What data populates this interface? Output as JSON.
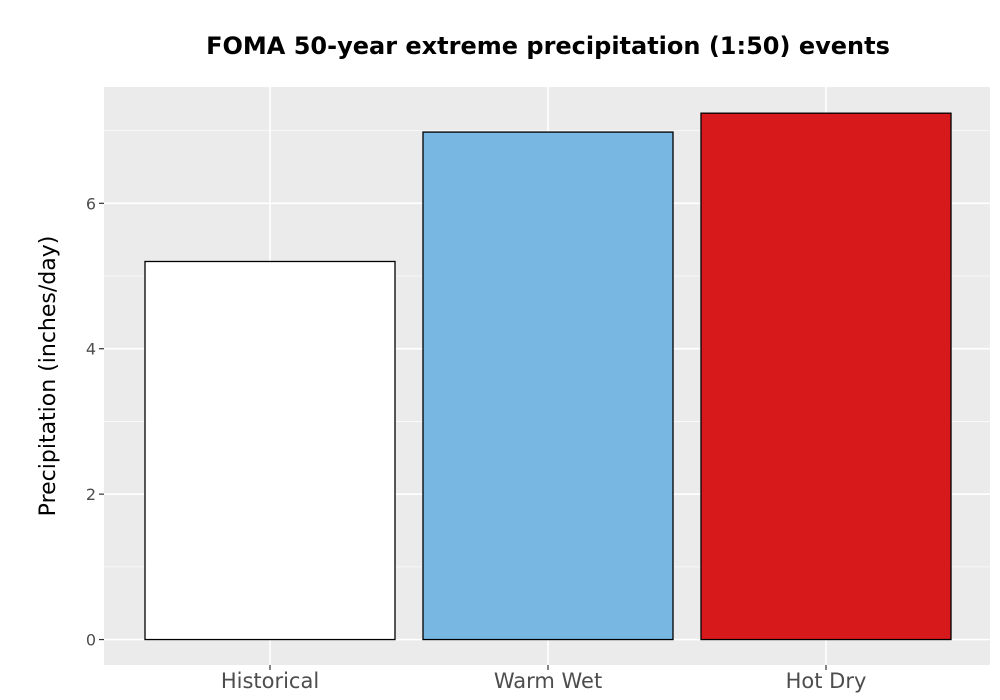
{
  "chart_data": {
    "type": "bar",
    "title": "FOMA 50-year extreme precipitation (1:50) events",
    "xlabel": "",
    "ylabel": "Precipitation (inches/day)",
    "categories": [
      "Historical",
      "Warm Wet",
      "Hot Dry"
    ],
    "values": [
      5.2,
      6.98,
      7.24
    ],
    "colors": [
      "#ffffff",
      "#78b7e1",
      "#d7191c"
    ],
    "bar_outline_color": "#000000",
    "panel_background": "#ebebeb",
    "grid_color": "#ffffff",
    "ylim": [
      -0.35,
      7.6
    ],
    "yticks": [
      0,
      2,
      4,
      6
    ],
    "grid": true,
    "legend": "none"
  }
}
